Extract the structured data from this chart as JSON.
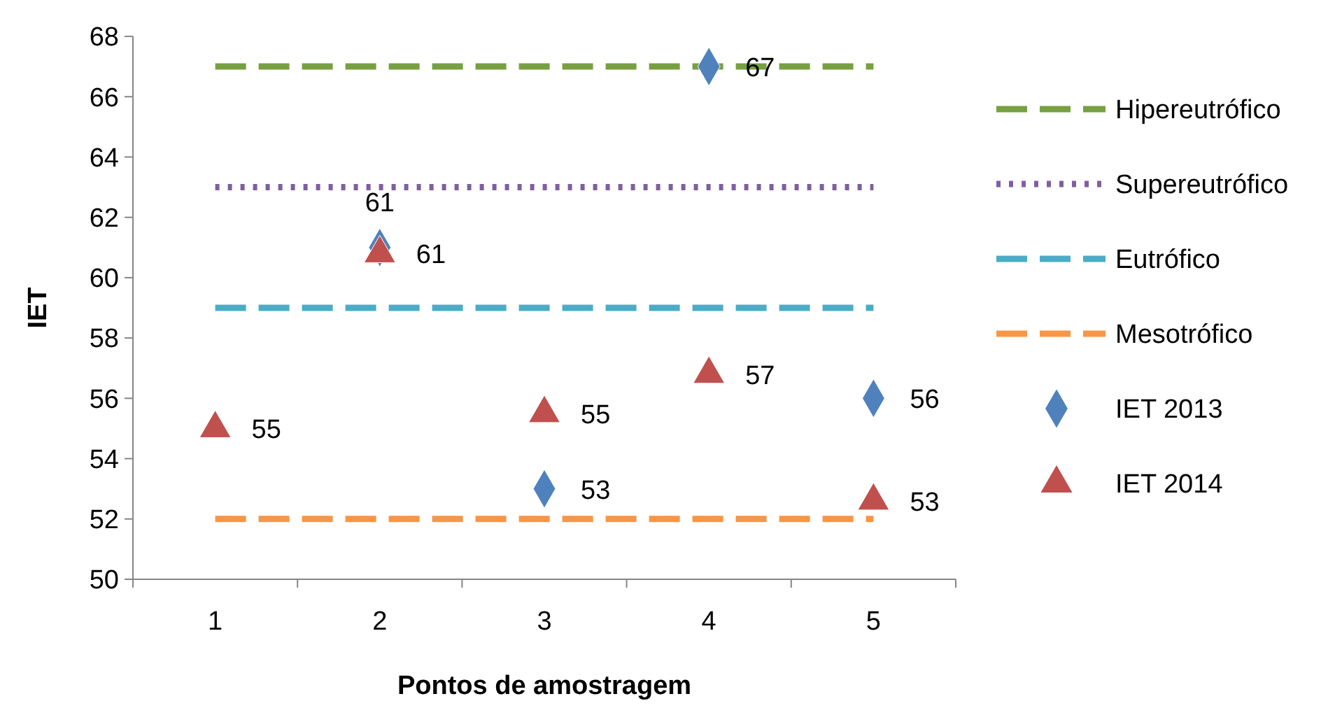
{
  "chart_data": {
    "type": "line",
    "xlabel": "Pontos de amostragem",
    "ylabel": "IET",
    "categories": [
      "1",
      "2",
      "3",
      "4",
      "5"
    ],
    "ylim": [
      50,
      68
    ],
    "yticks": [
      50,
      52,
      54,
      56,
      58,
      60,
      62,
      64,
      66,
      68
    ],
    "grid": false,
    "legend": "right",
    "series": [
      {
        "name": "Hipereutrófico",
        "color": "#77a040",
        "line_style": "dashed",
        "marker": "none",
        "values": [
          67,
          67,
          67,
          67,
          67
        ]
      },
      {
        "name": "Supereutrófico",
        "color": "#7f5f9f",
        "line_style": "dotted",
        "marker": "none",
        "values": [
          63,
          63,
          63,
          63,
          63
        ]
      },
      {
        "name": "Eutrófico",
        "color": "#4bacc6",
        "line_style": "dashed",
        "marker": "none",
        "values": [
          59,
          59,
          59,
          59,
          59
        ]
      },
      {
        "name": "Mesotrófico",
        "color": "#f79646",
        "line_style": "dashed",
        "marker": "none",
        "values": [
          52,
          52,
          52,
          52,
          52
        ]
      },
      {
        "name": "IET 2013",
        "type": "scatter",
        "color": "#4f81bd",
        "marker": "diamond",
        "values": [
          null,
          61,
          53,
          67,
          56
        ],
        "value_labels": [
          null,
          "61",
          "53",
          "67",
          "56"
        ]
      },
      {
        "name": "IET 2014",
        "type": "scatter",
        "color": "#c0504d",
        "marker": "triangle",
        "values": [
          55,
          60.8,
          55.5,
          56.8,
          52.6
        ],
        "value_labels": [
          "55",
          "61",
          "55",
          "57",
          "53"
        ]
      }
    ]
  }
}
